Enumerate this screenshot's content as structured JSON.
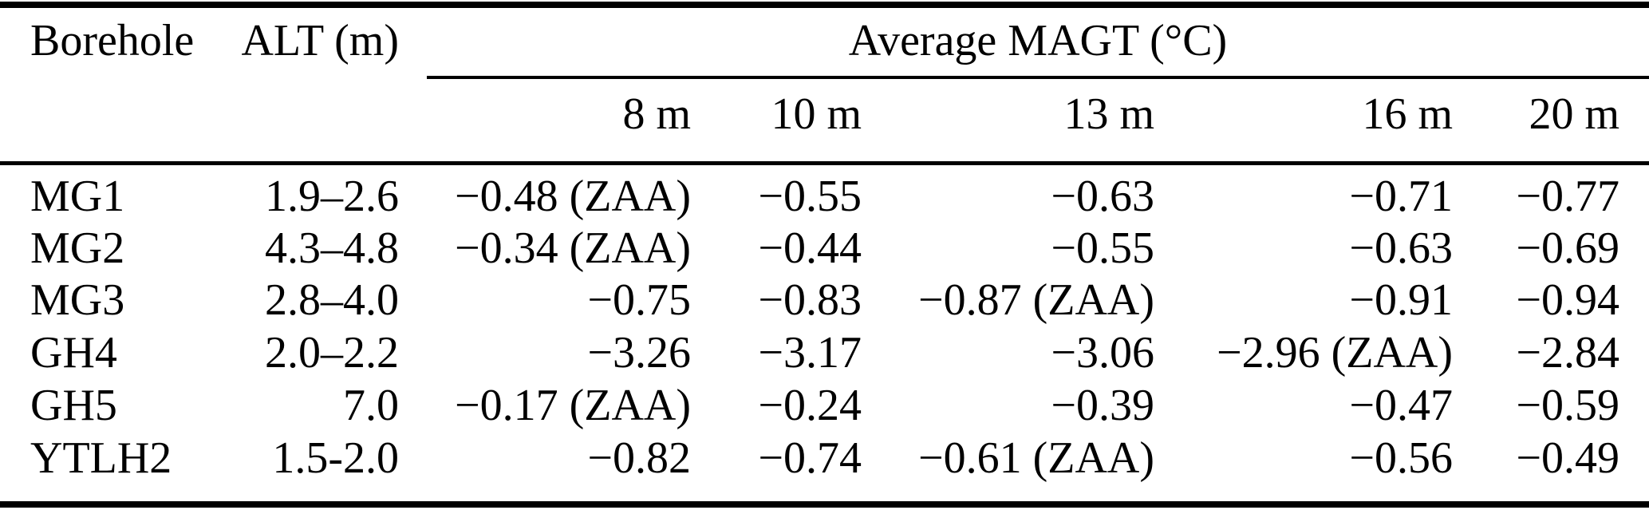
{
  "table": {
    "col_headers": {
      "borehole": "Borehole",
      "alt": "ALT (m)",
      "magt_group": "Average MAGT (°C)",
      "depths": [
        "8 m",
        "10 m",
        "13 m",
        "16 m",
        "20 m"
      ]
    },
    "rows": [
      {
        "borehole": "MG1",
        "alt": "1.9–2.6",
        "magt": [
          "−0.48 (ZAA)",
          "−0.55",
          "−0.63",
          "−0.71",
          "−0.77"
        ]
      },
      {
        "borehole": "MG2",
        "alt": "4.3–4.8",
        "magt": [
          "−0.34 (ZAA)",
          "−0.44",
          "−0.55",
          "−0.63",
          "−0.69"
        ]
      },
      {
        "borehole": "MG3",
        "alt": "2.8–4.0",
        "magt": [
          "−0.75",
          "−0.83",
          "−0.87 (ZAA)",
          "−0.91",
          "−0.94"
        ]
      },
      {
        "borehole": "GH4",
        "alt": "2.0–2.2",
        "magt": [
          "−3.26",
          "−3.17",
          "−3.06",
          "−2.96 (ZAA)",
          "−2.84"
        ]
      },
      {
        "borehole": "GH5",
        "alt": "7.0",
        "magt": [
          "−0.17 (ZAA)",
          "−0.24",
          "−0.39",
          "−0.47",
          "−0.59"
        ]
      },
      {
        "borehole": "YTLH2",
        "alt": "1.5-2.0",
        "magt": [
          "−0.82",
          "−0.74",
          "−0.61 (ZAA)",
          "−0.56",
          "−0.49"
        ]
      }
    ],
    "colors": {
      "text": "#000000",
      "background": "#ffffff",
      "rule": "#000000"
    }
  }
}
